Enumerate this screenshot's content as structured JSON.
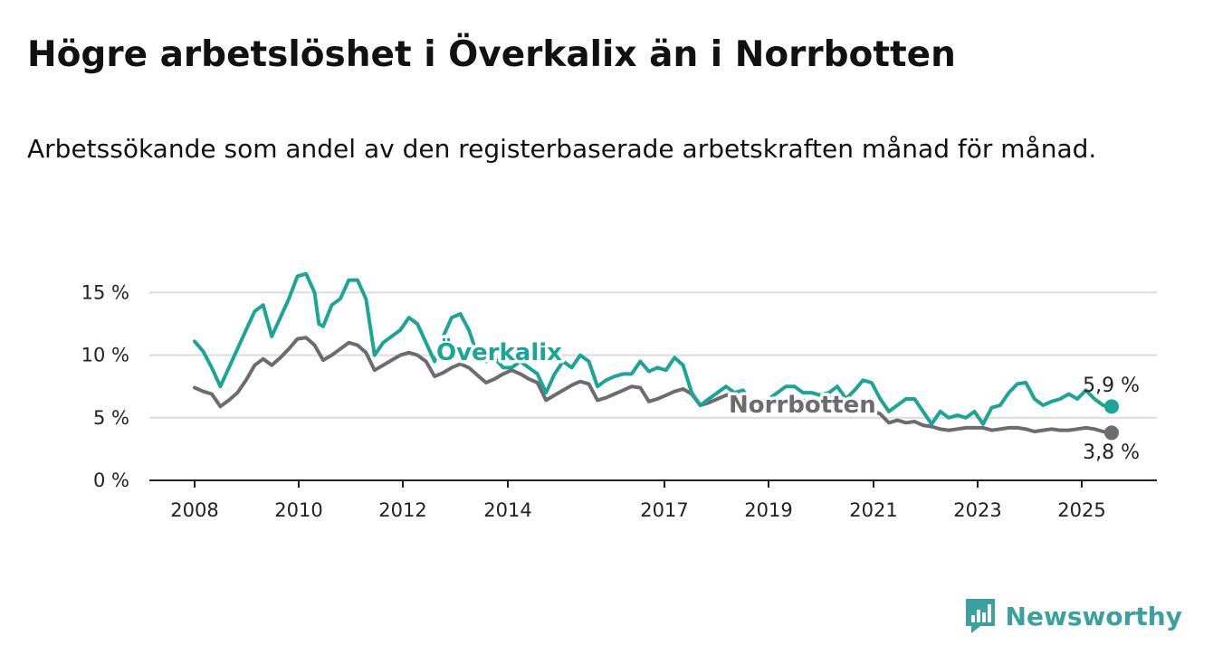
{
  "chart_data": {
    "type": "line",
    "title": "Högre arbetslöshet i Överkalix än i Norrbotten",
    "subtitle": "Arbetssökande som andel av den registerbaserade arbetskraften månad för månad.",
    "x_ticks": [
      "2008",
      "2010",
      "2012",
      "2014",
      "2017",
      "2019",
      "2021",
      "2023",
      "2025"
    ],
    "y_ticks": [
      "0 %",
      "5 %",
      "10 %",
      "15 %"
    ],
    "ylim": [
      0,
      17
    ],
    "grid": true,
    "series": [
      {
        "name": "Överkalix",
        "color": "#1aa596",
        "end_label": "5,9 %",
        "points": [
          [
            2008.0,
            11.1
          ],
          [
            2008.2,
            10.3
          ],
          [
            2008.4,
            9.0
          ],
          [
            2008.6,
            7.5
          ],
          [
            2008.8,
            9.0
          ],
          [
            2009.0,
            10.5
          ],
          [
            2009.2,
            12.0
          ],
          [
            2009.4,
            13.5
          ],
          [
            2009.6,
            14.0
          ],
          [
            2009.8,
            11.5
          ],
          [
            2010.0,
            13.0
          ],
          [
            2010.2,
            14.5
          ],
          [
            2010.4,
            16.3
          ],
          [
            2010.6,
            16.5
          ],
          [
            2010.8,
            15.0
          ],
          [
            2010.9,
            12.5
          ],
          [
            2011.0,
            12.3
          ],
          [
            2011.2,
            14.0
          ],
          [
            2011.4,
            14.5
          ],
          [
            2011.6,
            16.0
          ],
          [
            2011.8,
            16.0
          ],
          [
            2012.0,
            14.5
          ],
          [
            2012.2,
            10.0
          ],
          [
            2012.4,
            11.0
          ],
          [
            2012.6,
            11.5
          ],
          [
            2012.8,
            12.0
          ],
          [
            2013.0,
            13.0
          ],
          [
            2013.2,
            12.5
          ],
          [
            2013.4,
            11.0
          ],
          [
            2013.6,
            9.5
          ],
          [
            2013.8,
            11.5
          ],
          [
            2014.0,
            13.0
          ],
          [
            2014.2,
            13.3
          ],
          [
            2014.4,
            12.0
          ],
          [
            2014.6,
            10.0
          ],
          [
            2014.8,
            9.5
          ],
          [
            2015.0,
            9.8
          ],
          [
            2015.2,
            9.0
          ],
          [
            2015.4,
            9.0
          ],
          [
            2015.6,
            9.5
          ],
          [
            2015.8,
            9.0
          ],
          [
            2016.0,
            8.5
          ],
          [
            2016.2,
            7.0
          ],
          [
            2016.4,
            8.5
          ],
          [
            2016.6,
            9.5
          ],
          [
            2016.8,
            9.0
          ],
          [
            2017.0,
            10.0
          ],
          [
            2017.2,
            9.5
          ],
          [
            2017.4,
            7.5
          ],
          [
            2017.6,
            8.0
          ],
          [
            2017.8,
            8.3
          ],
          [
            2018.0,
            8.5
          ],
          [
            2018.2,
            8.5
          ],
          [
            2018.4,
            9.5
          ],
          [
            2018.6,
            8.7
          ],
          [
            2018.8,
            9.0
          ],
          [
            2019.0,
            8.8
          ],
          [
            2019.2,
            9.8
          ],
          [
            2019.4,
            9.2
          ],
          [
            2019.6,
            7.0
          ],
          [
            2019.8,
            6.0
          ],
          [
            2020.0,
            6.5
          ],
          [
            2020.2,
            7.0
          ],
          [
            2020.4,
            7.5
          ],
          [
            2020.6,
            7.0
          ],
          [
            2020.8,
            7.2
          ],
          [
            2021.0,
            6.0
          ],
          [
            2021.2,
            5.8
          ],
          [
            2021.4,
            6.5
          ],
          [
            2021.6,
            7.0
          ],
          [
            2021.8,
            7.5
          ],
          [
            2022.0,
            7.5
          ],
          [
            2022.2,
            7.0
          ],
          [
            2022.4,
            7.0
          ],
          [
            2022.6,
            6.8
          ],
          [
            2022.8,
            7.0
          ],
          [
            2023.0,
            7.5
          ],
          [
            2023.2,
            6.5
          ],
          [
            2023.4,
            7.2
          ],
          [
            2023.6,
            8.0
          ],
          [
            2023.8,
            7.8
          ],
          [
            2024.0,
            6.5
          ],
          [
            2024.2,
            5.5
          ],
          [
            2024.4,
            6.0
          ],
          [
            2024.6,
            6.5
          ],
          [
            2024.8,
            6.5
          ],
          [
            2025.0,
            5.5
          ],
          [
            2025.2,
            4.5
          ],
          [
            2025.4,
            5.5
          ],
          [
            2025.6,
            5.0
          ],
          [
            2025.8,
            5.2
          ],
          [
            2026.0,
            5.0
          ],
          [
            2026.2,
            5.5
          ],
          [
            2026.4,
            4.5
          ],
          [
            2026.6,
            5.8
          ],
          [
            2026.8,
            6.0
          ],
          [
            2027.0,
            7.0
          ],
          [
            2027.2,
            7.7
          ],
          [
            2027.4,
            7.8
          ],
          [
            2027.6,
            6.5
          ],
          [
            2027.8,
            6.0
          ],
          [
            2028.0,
            6.3
          ],
          [
            2028.2,
            6.5
          ],
          [
            2028.4,
            6.9
          ],
          [
            2028.6,
            6.5
          ],
          [
            2028.8,
            7.2
          ],
          [
            2029.0,
            6.5
          ],
          [
            2029.2,
            6.0
          ],
          [
            2029.4,
            5.9
          ]
        ]
      },
      {
        "name": "Norrbotten",
        "color": "#6b6b70",
        "end_label": "3,8 %",
        "points": [
          [
            2008.0,
            7.4
          ],
          [
            2008.2,
            7.1
          ],
          [
            2008.4,
            6.9
          ],
          [
            2008.6,
            5.9
          ],
          [
            2008.8,
            6.4
          ],
          [
            2009.0,
            7.0
          ],
          [
            2009.2,
            8.0
          ],
          [
            2009.4,
            9.2
          ],
          [
            2009.6,
            9.7
          ],
          [
            2009.8,
            9.2
          ],
          [
            2010.0,
            9.8
          ],
          [
            2010.2,
            10.5
          ],
          [
            2010.4,
            11.3
          ],
          [
            2010.6,
            11.4
          ],
          [
            2010.8,
            10.8
          ],
          [
            2011.0,
            9.6
          ],
          [
            2011.2,
            10.0
          ],
          [
            2011.4,
            10.5
          ],
          [
            2011.6,
            11.0
          ],
          [
            2011.8,
            10.8
          ],
          [
            2012.0,
            10.2
          ],
          [
            2012.2,
            8.8
          ],
          [
            2012.4,
            9.2
          ],
          [
            2012.6,
            9.6
          ],
          [
            2012.8,
            10.0
          ],
          [
            2013.0,
            10.2
          ],
          [
            2013.2,
            10.0
          ],
          [
            2013.4,
            9.5
          ],
          [
            2013.6,
            8.3
          ],
          [
            2013.8,
            8.6
          ],
          [
            2014.0,
            9.0
          ],
          [
            2014.2,
            9.3
          ],
          [
            2014.4,
            9.0
          ],
          [
            2014.6,
            8.4
          ],
          [
            2014.8,
            7.8
          ],
          [
            2015.0,
            8.1
          ],
          [
            2015.2,
            8.5
          ],
          [
            2015.4,
            8.8
          ],
          [
            2015.6,
            8.5
          ],
          [
            2015.8,
            8.1
          ],
          [
            2016.0,
            7.8
          ],
          [
            2016.2,
            6.4
          ],
          [
            2016.4,
            6.8
          ],
          [
            2016.6,
            7.2
          ],
          [
            2016.8,
            7.6
          ],
          [
            2017.0,
            7.9
          ],
          [
            2017.2,
            7.7
          ],
          [
            2017.4,
            6.4
          ],
          [
            2017.6,
            6.6
          ],
          [
            2017.8,
            6.9
          ],
          [
            2018.0,
            7.2
          ],
          [
            2018.2,
            7.5
          ],
          [
            2018.4,
            7.4
          ],
          [
            2018.6,
            6.3
          ],
          [
            2018.8,
            6.5
          ],
          [
            2019.0,
            6.8
          ],
          [
            2019.2,
            7.1
          ],
          [
            2019.4,
            7.3
          ],
          [
            2019.6,
            6.9
          ],
          [
            2019.8,
            6.0
          ],
          [
            2020.0,
            6.2
          ],
          [
            2020.2,
            6.5
          ],
          [
            2020.4,
            6.8
          ],
          [
            2020.6,
            6.9
          ],
          [
            2020.8,
            6.6
          ],
          [
            2021.0,
            5.6
          ],
          [
            2021.2,
            5.7
          ],
          [
            2021.4,
            5.9
          ],
          [
            2021.6,
            6.2
          ],
          [
            2021.8,
            6.5
          ],
          [
            2022.0,
            6.6
          ],
          [
            2022.2,
            6.4
          ],
          [
            2022.4,
            6.2
          ],
          [
            2022.6,
            6.4
          ],
          [
            2022.8,
            6.6
          ],
          [
            2023.0,
            6.7
          ],
          [
            2023.2,
            6.2
          ],
          [
            2023.4,
            5.7
          ],
          [
            2023.6,
            5.8
          ],
          [
            2023.8,
            5.6
          ],
          [
            2024.0,
            5.3
          ],
          [
            2024.2,
            4.6
          ],
          [
            2024.4,
            4.8
          ],
          [
            2024.6,
            4.6
          ],
          [
            2024.8,
            4.7
          ],
          [
            2025.0,
            4.4
          ],
          [
            2025.2,
            4.3
          ],
          [
            2025.4,
            4.1
          ],
          [
            2025.6,
            4.0
          ],
          [
            2025.8,
            4.1
          ],
          [
            2026.0,
            4.2
          ],
          [
            2026.2,
            4.2
          ],
          [
            2026.4,
            4.2
          ],
          [
            2026.6,
            4.0
          ],
          [
            2026.8,
            4.1
          ],
          [
            2027.0,
            4.2
          ],
          [
            2027.2,
            4.2
          ],
          [
            2027.4,
            4.1
          ],
          [
            2027.6,
            3.9
          ],
          [
            2027.8,
            4.0
          ],
          [
            2028.0,
            4.1
          ],
          [
            2028.2,
            4.0
          ],
          [
            2028.4,
            4.0
          ],
          [
            2028.6,
            4.1
          ],
          [
            2028.8,
            4.2
          ],
          [
            2029.0,
            4.1
          ],
          [
            2029.2,
            3.9
          ],
          [
            2029.4,
            3.8
          ]
        ]
      }
    ]
  },
  "brand": {
    "name": "Newsworthy",
    "icon": "newsworthy-logo-icon",
    "color": "#3aa0a0"
  }
}
